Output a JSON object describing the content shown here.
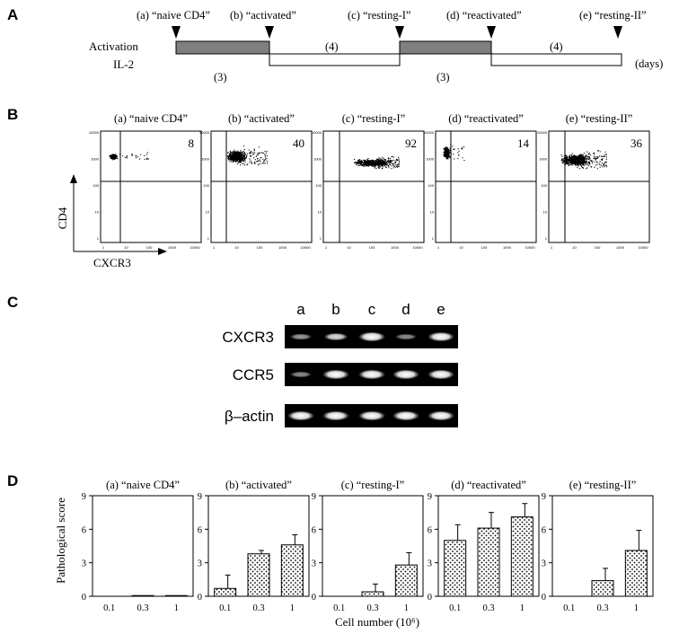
{
  "panel_letters": [
    "A",
    "B",
    "C",
    "D"
  ],
  "panel_a": {
    "stage_labels": [
      "(a) “naive CD4”",
      "(b) “activated”",
      "(c) “resting-I”",
      "(d) “reactivated”",
      "(e) “resting-II”"
    ],
    "row_labels": [
      "Activation",
      "IL-2"
    ],
    "durations": [
      "(3)",
      "(4)",
      "(3)",
      "(4)"
    ],
    "units": "(days)"
  },
  "panel_b": {
    "titles": [
      "(a) “naive CD4”",
      "(b) “activated”",
      "(c) “resting-I”",
      "(d) “reactivated”",
      "(e) “resting-II”"
    ],
    "percent_values": [
      "8",
      "40",
      "92",
      "14",
      "36"
    ],
    "y_axis_label": "CD4",
    "x_axis_label": "CXCR3",
    "y_ticks": [
      "10000",
      "1000",
      "100",
      "10",
      "1"
    ],
    "x_ticks": [
      "1",
      "10",
      "100",
      "1000",
      "10000"
    ]
  },
  "panel_c": {
    "lane_labels": [
      "a",
      "b",
      "c",
      "d",
      "e"
    ],
    "genes": [
      "CXCR3",
      "CCR5",
      "β–actin"
    ],
    "band_intensity": [
      [
        0.35,
        0.6,
        1.0,
        0.3,
        0.95
      ],
      [
        0.3,
        1.0,
        1.0,
        1.0,
        1.0
      ],
      [
        1.0,
        1.0,
        1.0,
        1.0,
        1.0
      ]
    ]
  },
  "chart_data": {
    "type": "bar",
    "ylabel": "Pathological score",
    "xlabel": "Cell number (10⁶)",
    "categories": [
      "0.1",
      "0.3",
      "1"
    ],
    "y_ticks": [
      "0",
      "3",
      "6",
      "9"
    ],
    "ylim": [
      0,
      9
    ],
    "panels": [
      {
        "title": "(a) “naive CD4”",
        "values": [
          0,
          0.05,
          0.05
        ],
        "errors": [
          0,
          0,
          0
        ]
      },
      {
        "title": "(b) “activated”",
        "values": [
          0.7,
          3.8,
          4.6
        ],
        "errors": [
          1.2,
          0.3,
          0.9
        ]
      },
      {
        "title": "(c) “resting-I”",
        "values": [
          0,
          0.4,
          2.8
        ],
        "errors": [
          0,
          0.7,
          1.1
        ]
      },
      {
        "title": "(d) “reactivated”",
        "values": [
          5.0,
          6.1,
          7.1
        ],
        "errors": [
          1.4,
          1.4,
          1.2
        ]
      },
      {
        "title": "(e) “resting-II”",
        "values": [
          0,
          1.4,
          4.1
        ],
        "errors": [
          0,
          1.1,
          1.8
        ]
      }
    ]
  }
}
